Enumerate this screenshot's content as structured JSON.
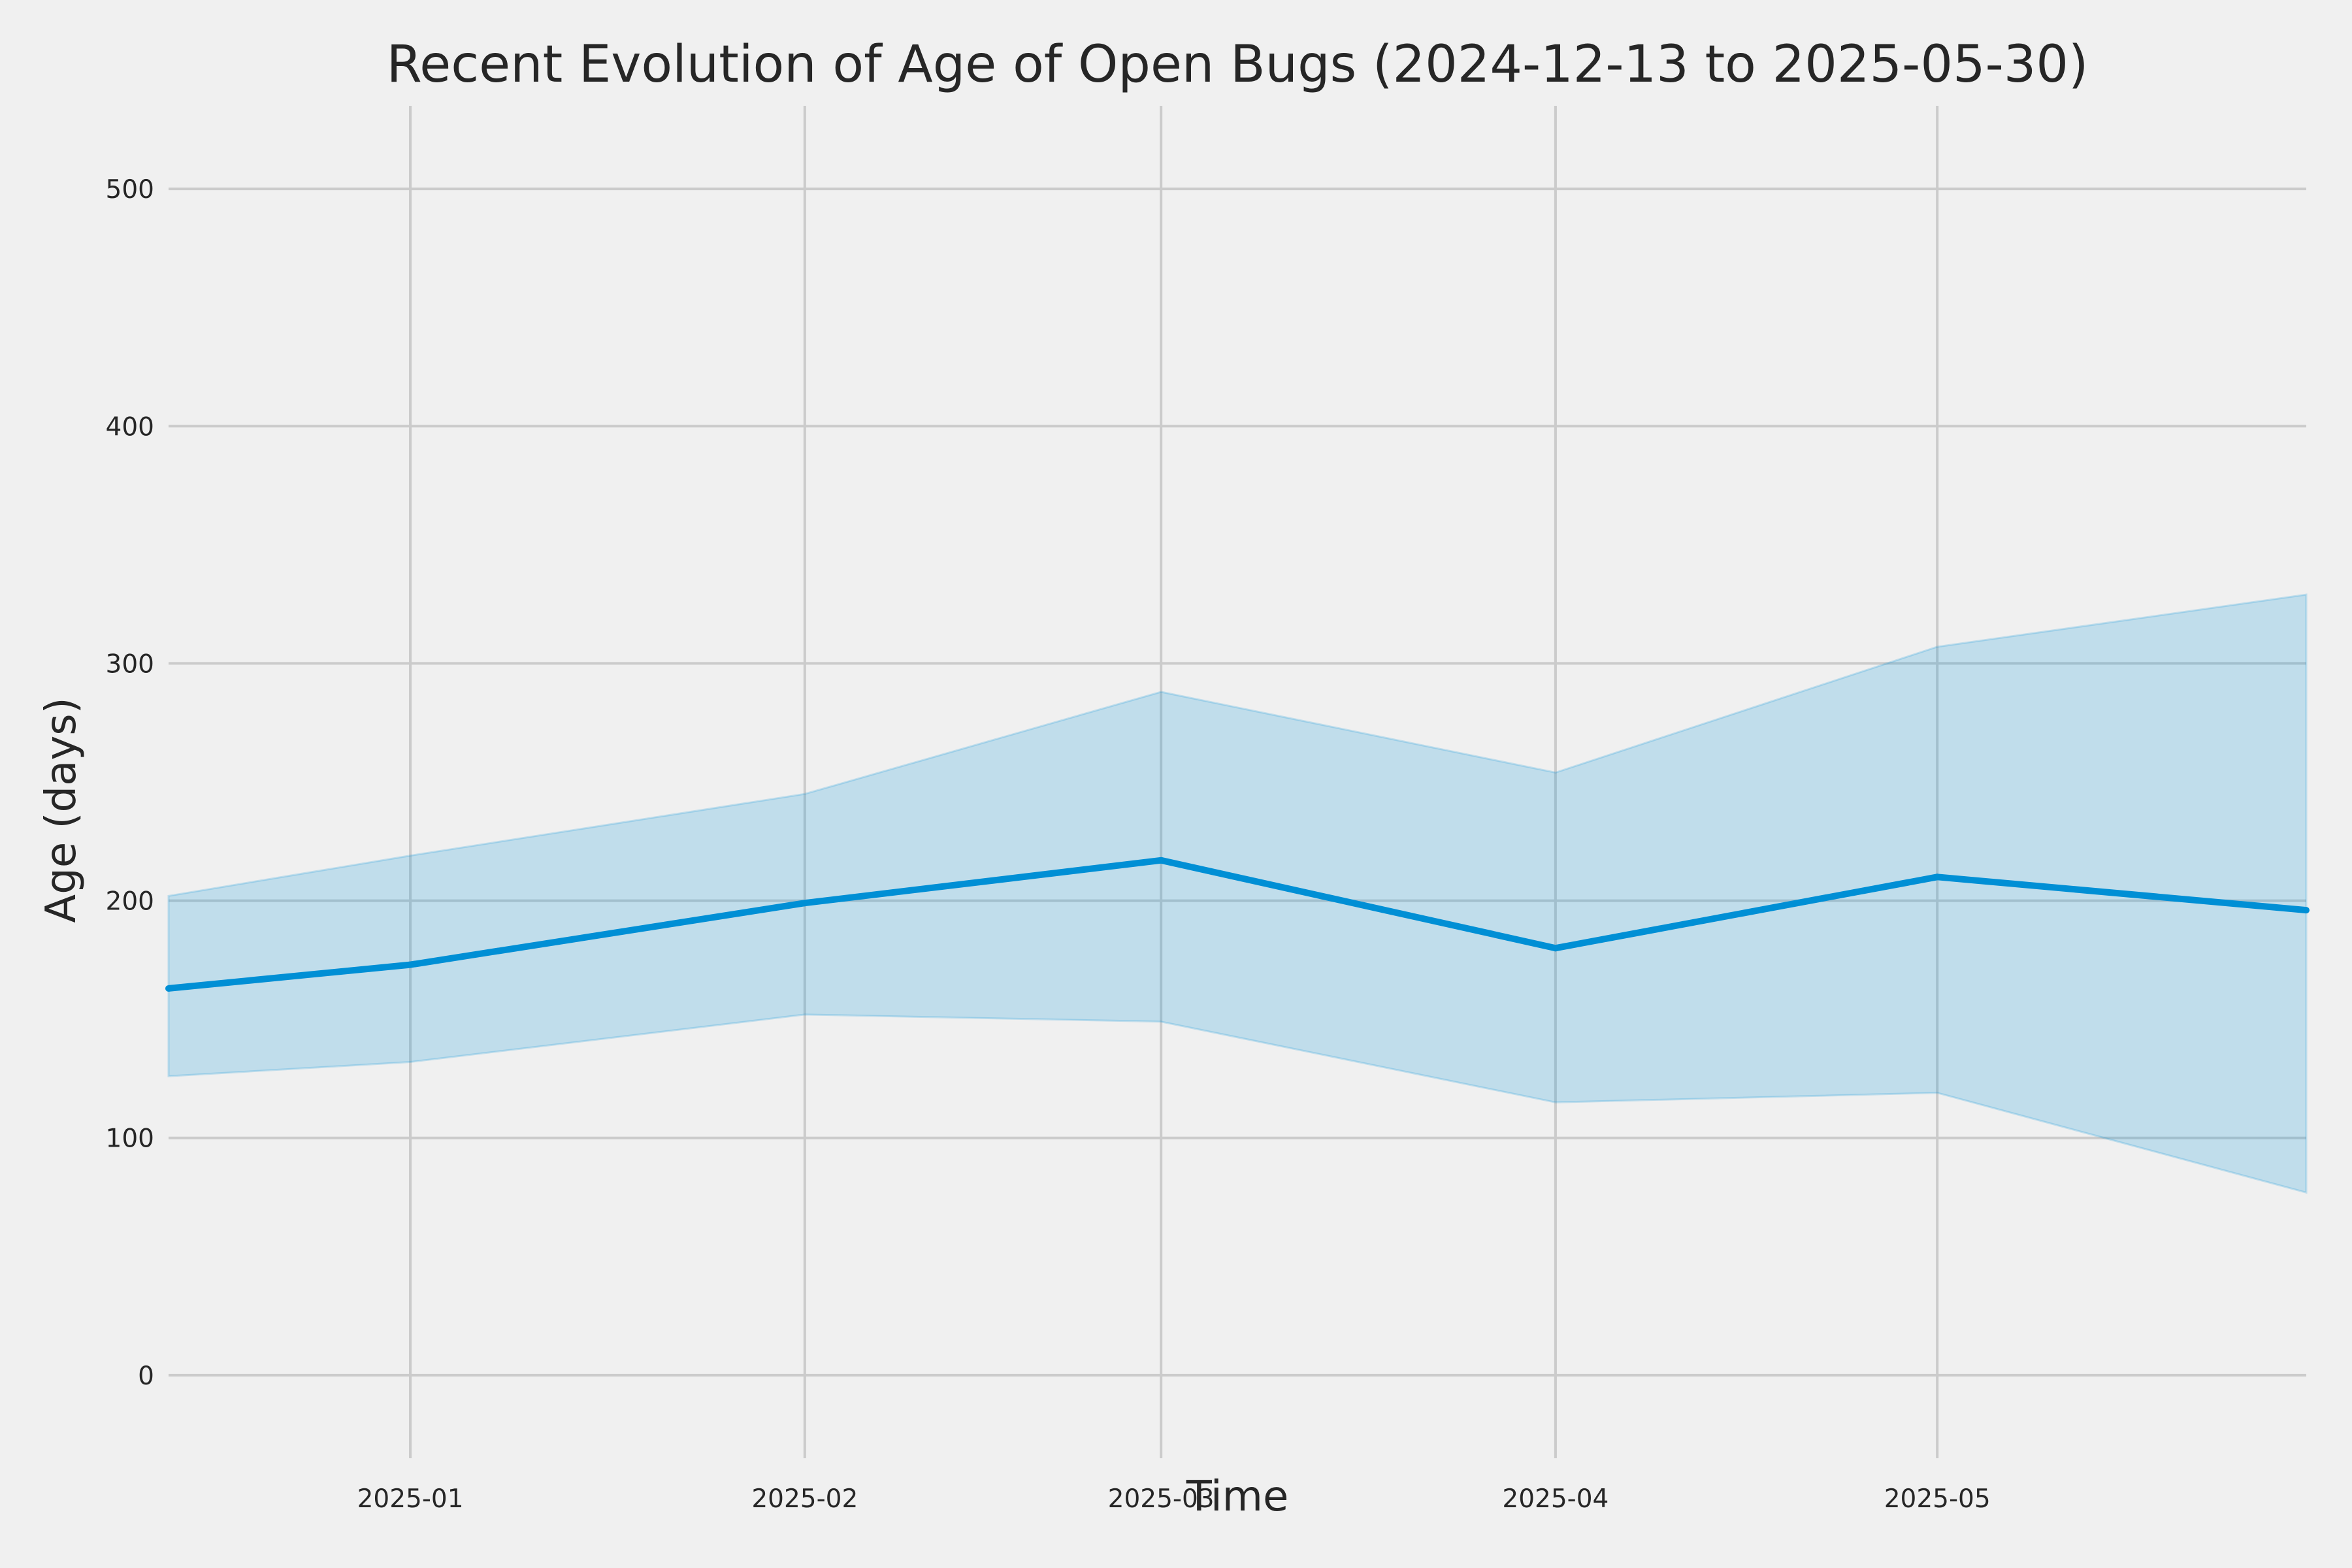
{
  "chart_data": {
    "type": "line",
    "title": "Recent Evolution of Age of Open Bugs (2024-12-13 to 2025-05-30)",
    "xlabel": "Time",
    "ylabel": "Age (days)",
    "x_range": [
      "2024-12-13",
      "2025-05-30"
    ],
    "ylim": [
      -35,
      535
    ],
    "grid": true,
    "x_ticks": [
      {
        "date": "2025-01-01",
        "label": "2025-01"
      },
      {
        "date": "2025-02-01",
        "label": "2025-02"
      },
      {
        "date": "2025-03-01",
        "label": "2025-03"
      },
      {
        "date": "2025-04-01",
        "label": "2025-04"
      },
      {
        "date": "2025-05-01",
        "label": "2025-05"
      }
    ],
    "y_ticks": [
      0,
      100,
      200,
      300,
      400,
      500
    ],
    "x": [
      "2024-12-13",
      "2025-01-01",
      "2025-02-01",
      "2025-03-01",
      "2025-04-01",
      "2025-05-01",
      "2025-05-30"
    ],
    "series": [
      {
        "values": [
          163,
          173,
          199,
          217,
          180,
          210,
          196
        ],
        "color": "#008fd5"
      }
    ],
    "band": {
      "upper": [
        202,
        219,
        245,
        288,
        254,
        307,
        329
      ],
      "lower": [
        126,
        132,
        152,
        149,
        115,
        119,
        77
      ],
      "color": "#008fd5",
      "opacity": 0.2
    }
  }
}
